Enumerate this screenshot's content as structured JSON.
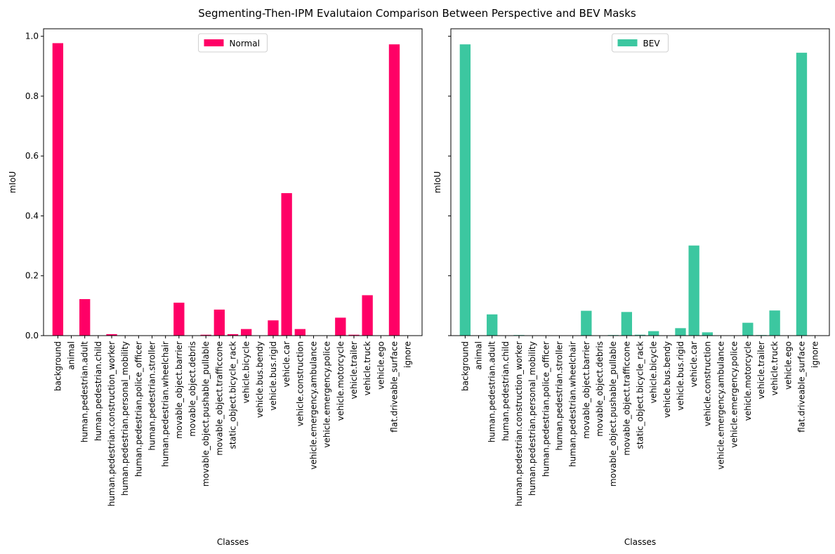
{
  "chart_data": {
    "title": "Segmenting-Then-IPM Evalutaion Comparison Between Perspective and BEV Masks",
    "type": "bar",
    "categories": [
      "background",
      "animal",
      "human.pedestrian.adult",
      "human.pedestrian.child",
      "human.pedestrian.construction_worker",
      "human.pedestrian.personal_mobility",
      "human.pedestrian.police_officer",
      "human.pedestrian.stroller",
      "human.pedestrian.wheelchair",
      "movable_object.barrier",
      "movable_object.debris",
      "movable_object.pushable_pullable",
      "movable_object.trafficcone",
      "static_object.bicycle_rack",
      "vehicle.bicycle",
      "vehicle.bus.bendy",
      "vehicle.bus.rigid",
      "vehicle.car",
      "vehicle.construction",
      "vehicle.emergency.ambulance",
      "vehicle.emergency.police",
      "vehicle.motorcycle",
      "vehicle.trailer",
      "vehicle.truck",
      "vehicle.ego",
      "flat.driveable_surface",
      "ignore"
    ],
    "shared_y": true,
    "ylim": [
      0,
      1.025
    ],
    "yticks": [
      "0.0",
      "0.2",
      "0.4",
      "0.6",
      "0.8",
      "1.0"
    ],
    "legend_position": "top-center",
    "grid": false,
    "panels": [
      {
        "xlabel": "Classes",
        "ylabel": "mIoU",
        "series": [
          {
            "name": "Normal",
            "color": "#ff0066",
            "values": [
              0.977,
              0,
              0.122,
              0,
              0.005,
              0.001,
              0.001,
              0,
              0,
              0.11,
              0.001,
              0.003,
              0.087,
              0.005,
              0.022,
              0,
              0.051,
              0.476,
              0.022,
              0,
              0,
              0.06,
              0.003,
              0.135,
              0,
              0.973,
              0
            ]
          }
        ]
      },
      {
        "xlabel": "Classes",
        "ylabel": "mIoU",
        "series": [
          {
            "name": "BEV",
            "color": "#3cc7a0",
            "values": [
              0.973,
              0,
              0.071,
              0,
              0.002,
              0.001,
              0.001,
              0,
              0,
              0.083,
              0.001,
              0.002,
              0.079,
              0.003,
              0.015,
              0,
              0.025,
              0.301,
              0.011,
              0,
              0,
              0.043,
              0.002,
              0.084,
              0,
              0.945,
              0
            ]
          }
        ]
      }
    ]
  }
}
